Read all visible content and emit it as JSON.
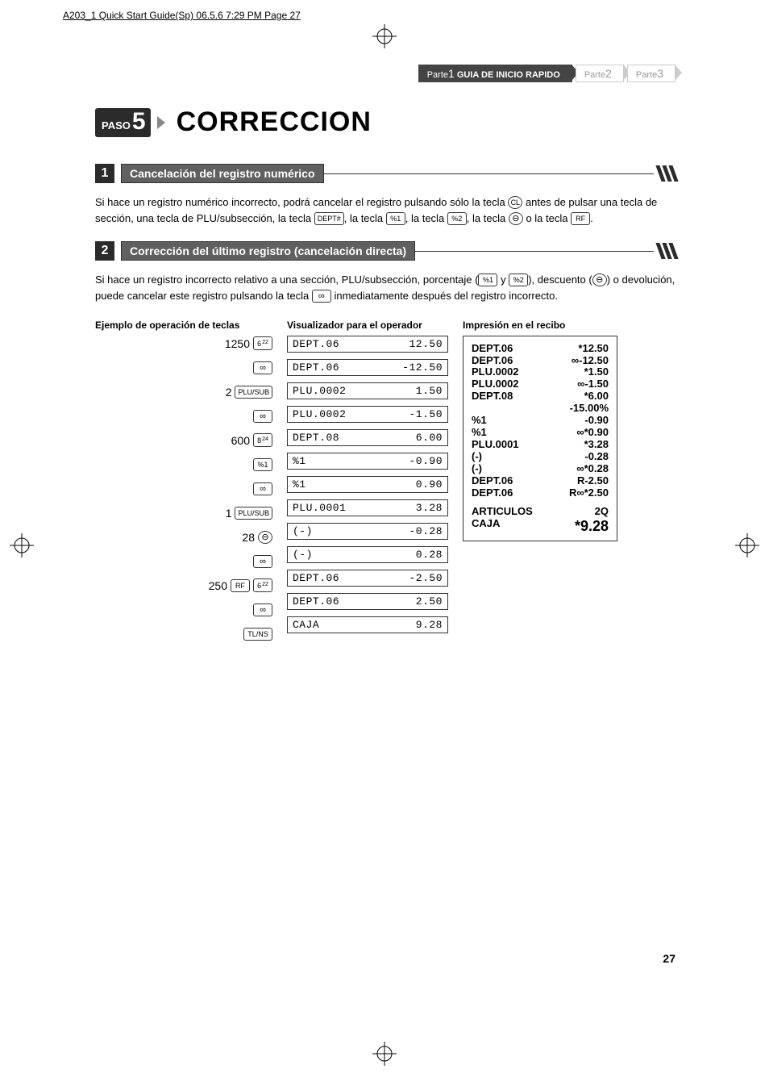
{
  "print_header": "A203_1 Quick Start Guide(Sp)   06.5.6 7:29 PM   Page 27",
  "tabs": [
    {
      "prefix": "Parte",
      "num": "1",
      "label": "GUIA DE INICIO RAPIDO",
      "active": true
    },
    {
      "prefix": "Parte",
      "num": "2",
      "label": "",
      "active": false
    },
    {
      "prefix": "Parte",
      "num": "3",
      "label": "",
      "active": false
    }
  ],
  "step": {
    "badge_prefix": "PASO",
    "badge_num": "5",
    "title": "CORRECCION"
  },
  "sections": [
    {
      "num": "1",
      "title": "Cancelación del registro numérico",
      "para_parts": [
        {
          "t": "Si hace un registro numérico incorrecto, podrá cancelar el registro pulsando sólo la tecla "
        },
        {
          "key": "CL",
          "round": true
        },
        {
          "t": " antes de pulsar una tecla de sección, una tecla de PLU/subsección, la tecla "
        },
        {
          "key": "DEPT#"
        },
        {
          "t": ", la tecla "
        },
        {
          "key": "%1"
        },
        {
          "t": ", la tecla "
        },
        {
          "key": "%2"
        },
        {
          "t": ", la tecla "
        },
        {
          "key": "⊖",
          "round": true,
          "sym": true
        },
        {
          "t": " o la tecla "
        },
        {
          "key": "RF"
        },
        {
          "t": "."
        }
      ]
    },
    {
      "num": "2",
      "title": "Corrección del último registro (cancelación directa)",
      "para_parts": [
        {
          "t": "Si hace un registro incorrecto relativo a una sección, PLU/subsección, porcentaje ("
        },
        {
          "key": "%1"
        },
        {
          "t": " y "
        },
        {
          "key": "%2"
        },
        {
          "t": "), descuento ("
        },
        {
          "key": "⊖",
          "round": true,
          "sym": true
        },
        {
          "t": ") o devolución, puede cancelar este registro pulsando la tecla "
        },
        {
          "key": "∞",
          "sym": true
        },
        {
          "t": " inmediatamente después del registro incorrecto."
        }
      ]
    }
  ],
  "col_heads": {
    "keys": "Ejemplo de operación de teclas",
    "disp": "Visualizador para el operador",
    "receipt": "Impresión en el recibo"
  },
  "key_rows": [
    [
      {
        "t": "1250"
      },
      {
        "key": "6",
        "sup": "22"
      }
    ],
    [
      {
        "key": "∞",
        "sym": true
      }
    ],
    [
      {
        "t": "2"
      },
      {
        "key": "PLU/SUB",
        "wide": true
      }
    ],
    [
      {
        "key": "∞",
        "sym": true
      }
    ],
    [
      {
        "t": "600"
      },
      {
        "key": "8",
        "sup": "24"
      }
    ],
    [
      {
        "key": "%1"
      }
    ],
    [
      {
        "key": "∞",
        "sym": true
      }
    ],
    [
      {
        "t": "1"
      },
      {
        "key": "PLU/SUB",
        "wide": true
      }
    ],
    [
      {
        "t": "28"
      },
      {
        "key": "⊖",
        "round": true,
        "sym": true
      }
    ],
    [
      {
        "key": "∞",
        "sym": true
      }
    ],
    [
      {
        "t": "250"
      },
      {
        "key": "RF"
      },
      {
        "key": "6",
        "sup": "22"
      }
    ],
    [
      {
        "key": "∞",
        "sym": true
      }
    ],
    [
      {
        "key": "TL/NS",
        "wide": true
      }
    ]
  ],
  "disp_rows": [
    {
      "l": "DEPT.06",
      "r": "12.50"
    },
    {
      "l": "DEPT.06",
      "r": "-12.50"
    },
    {
      "l": "PLU.0002",
      "r": "1.50"
    },
    {
      "l": "PLU.0002",
      "r": "-1.50"
    },
    {
      "l": "DEPT.08",
      "r": "6.00"
    },
    {
      "l": "%1",
      "r": "-0.90"
    },
    {
      "l": "%1",
      "r": "0.90"
    },
    {
      "l": "PLU.0001",
      "r": "3.28"
    },
    {
      "l": "(-)",
      "r": "-0.28"
    },
    {
      "l": "(-)",
      "r": "0.28"
    },
    {
      "l": "DEPT.06",
      "r": "-2.50"
    },
    {
      "l": "DEPT.06",
      "r": "2.50"
    },
    {
      "l": "CAJA",
      "r": "9.28"
    }
  ],
  "receipt_lines": [
    {
      "l": "DEPT.06",
      "r": "*12.50"
    },
    {
      "l": "DEPT.06",
      "r": "∞-12.50"
    },
    {
      "l": "PLU.0002",
      "r": "*1.50"
    },
    {
      "l": "PLU.0002",
      "r": "∞-1.50"
    },
    {
      "l": "DEPT.08",
      "r": "*6.00"
    },
    {
      "l": "",
      "r": "-15.00%"
    },
    {
      "l": "%1",
      "r": "-0.90"
    },
    {
      "l": "%1",
      "r": "∞*0.90"
    },
    {
      "l": "PLU.0001",
      "r": "*3.28"
    },
    {
      "l": "(-)",
      "r": "-0.28"
    },
    {
      "l": "(-)",
      "r": "∞*0.28"
    },
    {
      "l": "DEPT.06",
      "r": "R-2.50"
    },
    {
      "l": "DEPT.06",
      "r": "R∞*2.50"
    },
    {
      "spacer": true
    },
    {
      "l": "ARTICULOS",
      "r": "2Q"
    },
    {
      "l": "CAJA",
      "r": "*9.28",
      "total": true
    }
  ],
  "page_num": "27"
}
